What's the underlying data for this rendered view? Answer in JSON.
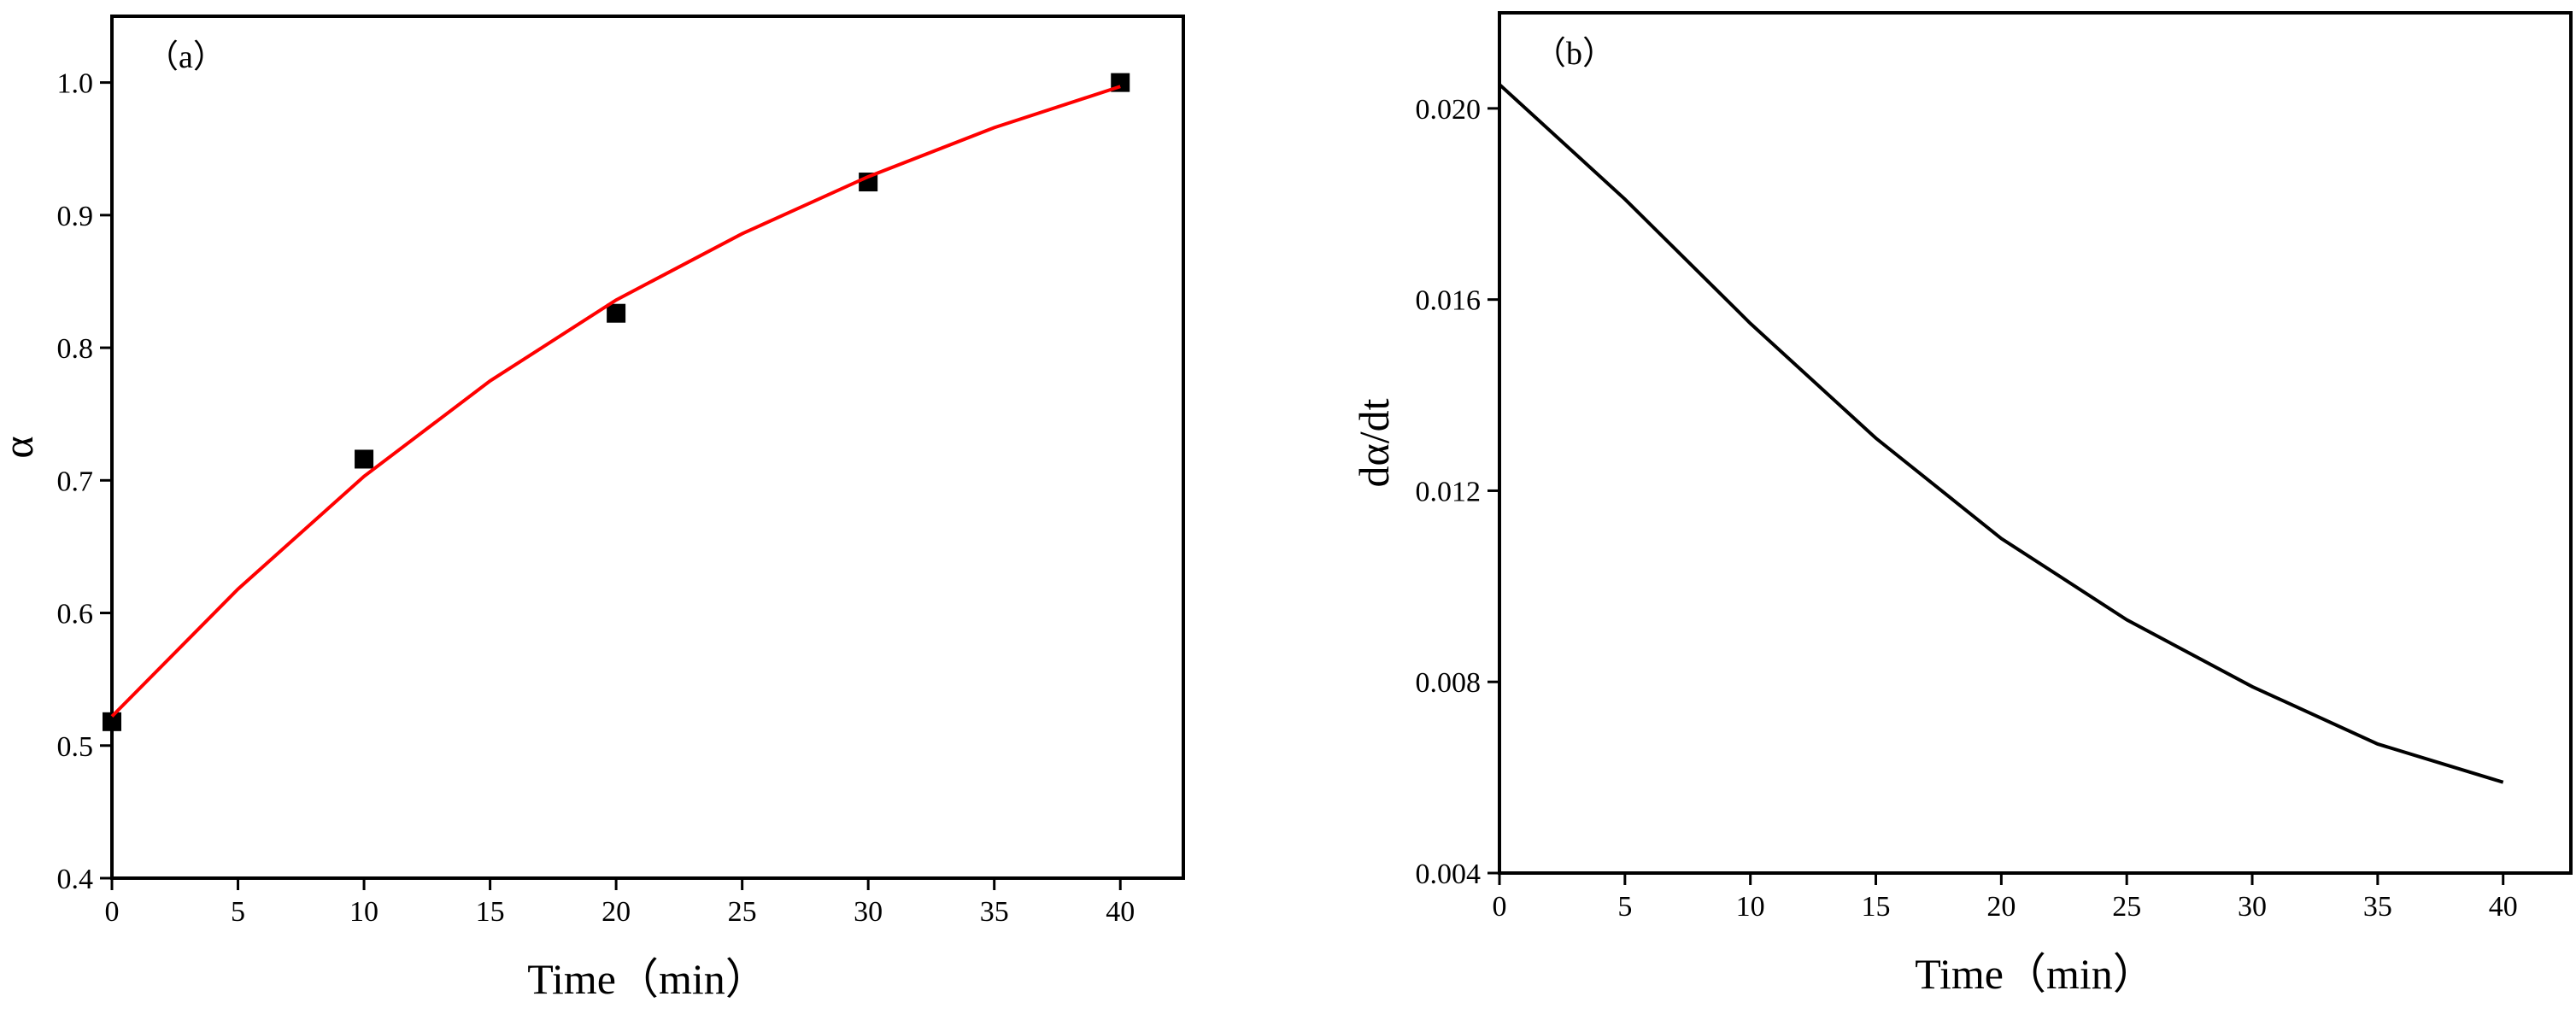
{
  "chart_data": [
    {
      "type": "scatter",
      "panel_label": "（a）",
      "xlabel": "Time（min）",
      "ylabel": "α",
      "xlim": [
        0,
        42.5
      ],
      "ylim": [
        0.4,
        1.05
      ],
      "xticks": [
        0,
        5,
        10,
        15,
        20,
        25,
        30,
        35,
        40
      ],
      "yticks": [
        0.4,
        0.5,
        0.6,
        0.7,
        0.8,
        0.9,
        {
          "value": 1,
          "label": "1.0"
        }
      ],
      "series": [
        {
          "type": "scatter",
          "color": "#000000",
          "x": [
            0,
            10,
            20,
            30,
            40
          ],
          "values": [
            0.518,
            0.716,
            0.826,
            0.925,
            1.0
          ]
        },
        {
          "type": "line",
          "color": "#ff0000",
          "x": [
            0,
            5,
            10,
            15,
            20,
            25,
            30,
            35,
            40
          ],
          "values": [
            0.522,
            0.618,
            0.703,
            0.775,
            0.836,
            0.886,
            0.929,
            0.966,
            0.997
          ]
        }
      ]
    },
    {
      "type": "line",
      "panel_label": "（b）",
      "xlabel": "Time（min）",
      "ylabel": "dα/dt",
      "xlim": [
        0,
        42.7
      ],
      "ylim": [
        0.004,
        0.022
      ],
      "xticks": [
        0,
        5,
        10,
        15,
        20,
        25,
        30,
        35,
        40
      ],
      "yticks": [
        0.004,
        0.008,
        0.012,
        0.016,
        {
          "value": 0.02,
          "label": "0.020"
        }
      ],
      "series": [
        {
          "type": "line",
          "color": "#000000",
          "x": [
            0,
            5,
            10,
            15,
            20,
            25,
            30,
            35,
            40
          ],
          "values": [
            0.0205,
            0.0181,
            0.0155,
            0.0131,
            0.011,
            0.0093,
            0.0079,
            0.0067,
            0.0059
          ]
        }
      ]
    }
  ]
}
